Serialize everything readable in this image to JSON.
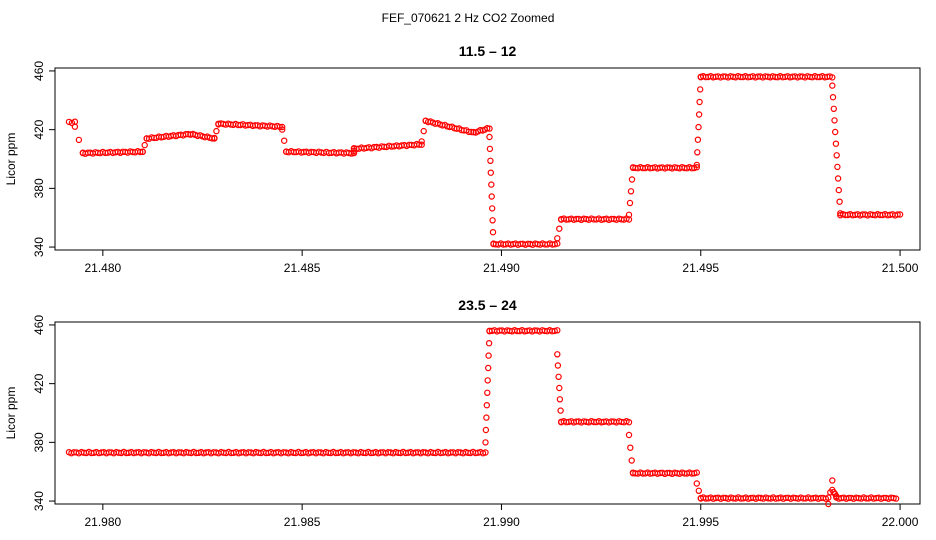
{
  "title": "FEF_070621  2 Hz CO2 Zoomed",
  "chart_data": [
    {
      "type": "scatter",
      "title": "11.5 – 12",
      "xlabel": "",
      "ylabel": "Licor ppm",
      "xlim": [
        21.4788,
        21.5005
      ],
      "ylim": [
        338,
        462
      ],
      "xticks": [
        "21.480",
        "21.485",
        "21.490",
        "21.495",
        "21.500"
      ],
      "yticks": [
        "340",
        "380",
        "420",
        "460"
      ],
      "marker": "open-circle",
      "color": "#ff0000",
      "segments": [
        {
          "x": [
            21.47915,
            21.4793
          ],
          "y": [
            425,
            425
          ]
        },
        {
          "x": [
            21.4793,
            21.4795
          ],
          "y": [
            422,
            404
          ]
        },
        {
          "x": [
            21.4795,
            21.481
          ],
          "y": [
            404,
            405
          ]
        },
        {
          "x": [
            21.481,
            21.4811
          ],
          "y": [
            405,
            414
          ]
        },
        {
          "x": [
            21.4811,
            21.4822
          ],
          "y": [
            414,
            417
          ]
        },
        {
          "x": [
            21.4822,
            21.4828
          ],
          "y": [
            417,
            414
          ]
        },
        {
          "x": [
            21.4828,
            21.4829
          ],
          "y": [
            414,
            424
          ]
        },
        {
          "x": [
            21.4829,
            21.4845
          ],
          "y": [
            424,
            422
          ]
        },
        {
          "x": [
            21.4845,
            21.4846
          ],
          "y": [
            420,
            405
          ]
        },
        {
          "x": [
            21.4846,
            21.4863
          ],
          "y": [
            405,
            404
          ]
        },
        {
          "x": [
            21.4863,
            21.4863
          ],
          "y": [
            404,
            407
          ]
        },
        {
          "x": [
            21.4863,
            21.488
          ],
          "y": [
            407,
            410
          ]
        },
        {
          "x": [
            21.488,
            21.4881
          ],
          "y": [
            412,
            426
          ]
        },
        {
          "x": [
            21.4881,
            21.4893
          ],
          "y": [
            426,
            418
          ]
        },
        {
          "x": [
            21.4893,
            21.4897
          ],
          "y": [
            418,
            421
          ]
        },
        {
          "x": [
            21.4897,
            21.4898
          ],
          "y": [
            415,
            342
          ]
        },
        {
          "x": [
            21.4898,
            21.4914
          ],
          "y": [
            342,
            342
          ]
        },
        {
          "x": [
            21.4914,
            21.4915
          ],
          "y": [
            346,
            359
          ]
        },
        {
          "x": [
            21.4915,
            21.4932
          ],
          "y": [
            359,
            359
          ]
        },
        {
          "x": [
            21.4932,
            21.4933
          ],
          "y": [
            362,
            394
          ]
        },
        {
          "x": [
            21.4933,
            21.4949
          ],
          "y": [
            394,
            394
          ]
        },
        {
          "x": [
            21.4949,
            21.495
          ],
          "y": [
            396,
            456
          ]
        },
        {
          "x": [
            21.495,
            21.4983
          ],
          "y": [
            456,
            456
          ]
        },
        {
          "x": [
            21.4983,
            21.4985
          ],
          "y": [
            450,
            363
          ]
        },
        {
          "x": [
            21.4985,
            21.5
          ],
          "y": [
            362,
            362
          ]
        }
      ]
    },
    {
      "type": "scatter",
      "title": "23.5 – 24",
      "xlabel": "",
      "ylabel": "Licor ppm",
      "xlim": [
        21.9788,
        22.0005
      ],
      "ylim": [
        338,
        462
      ],
      "xticks": [
        "21.980",
        "21.985",
        "21.990",
        "21.995",
        "22.000"
      ],
      "yticks": [
        "340",
        "380",
        "420",
        "460"
      ],
      "marker": "open-circle",
      "color": "#ff0000",
      "segments": [
        {
          "x": [
            21.97915,
            21.9896
          ],
          "y": [
            373,
            373
          ]
        },
        {
          "x": [
            21.9896,
            21.9897
          ],
          "y": [
            380,
            456
          ]
        },
        {
          "x": [
            21.9897,
            21.9914
          ],
          "y": [
            456,
            456
          ]
        },
        {
          "x": [
            21.9914,
            21.9915
          ],
          "y": [
            440,
            394
          ]
        },
        {
          "x": [
            21.9915,
            21.9932
          ],
          "y": [
            394,
            394
          ]
        },
        {
          "x": [
            21.9932,
            21.9933
          ],
          "y": [
            385,
            359
          ]
        },
        {
          "x": [
            21.9933,
            21.9949
          ],
          "y": [
            359,
            359
          ]
        },
        {
          "x": [
            21.9949,
            21.995
          ],
          "y": [
            352,
            342
          ]
        },
        {
          "x": [
            21.995,
            21.9982
          ],
          "y": [
            342,
            342
          ]
        },
        {
          "x": [
            21.9982,
            21.9983
          ],
          "y": [
            338,
            354
          ]
        },
        {
          "x": [
            21.9983,
            21.9984
          ],
          "y": [
            348,
            343
          ]
        },
        {
          "x": [
            21.9984,
            21.9999
          ],
          "y": [
            342,
            342
          ]
        }
      ]
    }
  ]
}
